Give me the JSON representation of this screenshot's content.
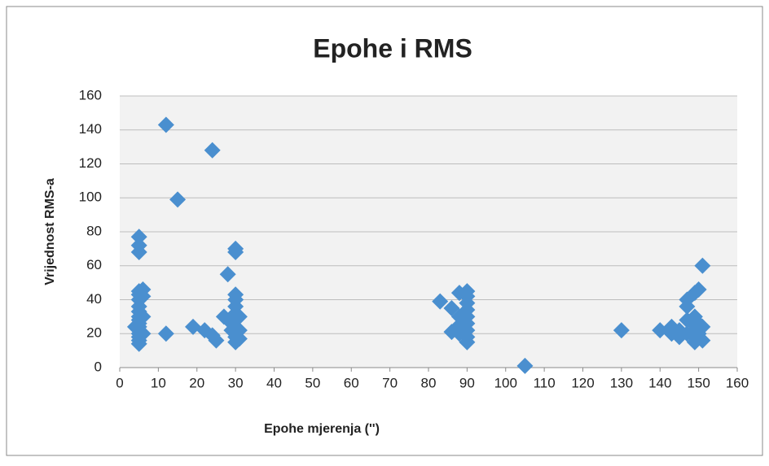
{
  "chart_data": {
    "type": "scatter",
    "title": "Epohe i RMS",
    "x_label": "Epohe mjerenja ('')",
    "y_label": "Vrijednost RMS-a",
    "color": "#4a8fcf",
    "grid": true,
    "xlim": [
      0,
      160
    ],
    "xticks": [
      0,
      10,
      20,
      30,
      40,
      50,
      60,
      70,
      80,
      90,
      100,
      110,
      120,
      130,
      140,
      150,
      160
    ],
    "ylim": [
      0,
      160
    ],
    "yticks": [
      0,
      20,
      40,
      60,
      80,
      100,
      120,
      140,
      160
    ],
    "x": [
      5,
      5,
      5,
      5,
      5,
      5,
      5,
      5,
      5,
      5,
      5,
      5,
      5,
      5,
      5,
      5,
      5,
      4,
      6,
      6,
      6,
      6,
      12,
      12,
      15,
      19,
      22,
      24,
      24,
      25,
      27,
      28,
      29,
      29,
      30,
      30,
      30,
      30,
      30,
      30,
      30,
      30,
      30,
      30,
      30,
      31,
      31,
      31,
      83,
      86,
      86,
      88,
      88,
      88,
      88,
      90,
      90,
      90,
      90,
      90,
      90,
      90,
      90,
      90,
      105,
      130,
      140,
      143,
      143,
      145,
      145,
      147,
      147,
      147,
      147,
      149,
      149,
      149,
      149,
      149,
      149,
      150,
      150,
      150,
      151,
      151,
      151
    ],
    "y": [
      14,
      16,
      18,
      20,
      22,
      24,
      26,
      28,
      30,
      33,
      36,
      40,
      43,
      45,
      68,
      72,
      77,
      24,
      46,
      42,
      20,
      30,
      143,
      20,
      99,
      24,
      22,
      128,
      19,
      16,
      30,
      55,
      22,
      26,
      68,
      70,
      15,
      18,
      20,
      24,
      28,
      32,
      36,
      40,
      43,
      17,
      22,
      30,
      39,
      21,
      35,
      44,
      20,
      25,
      30,
      15,
      18,
      22,
      26,
      30,
      34,
      38,
      42,
      45,
      1,
      22,
      22,
      24,
      20,
      18,
      22,
      20,
      28,
      36,
      40,
      44,
      15,
      18,
      22,
      25,
      30,
      46,
      20,
      26,
      60,
      16,
      24
    ]
  }
}
